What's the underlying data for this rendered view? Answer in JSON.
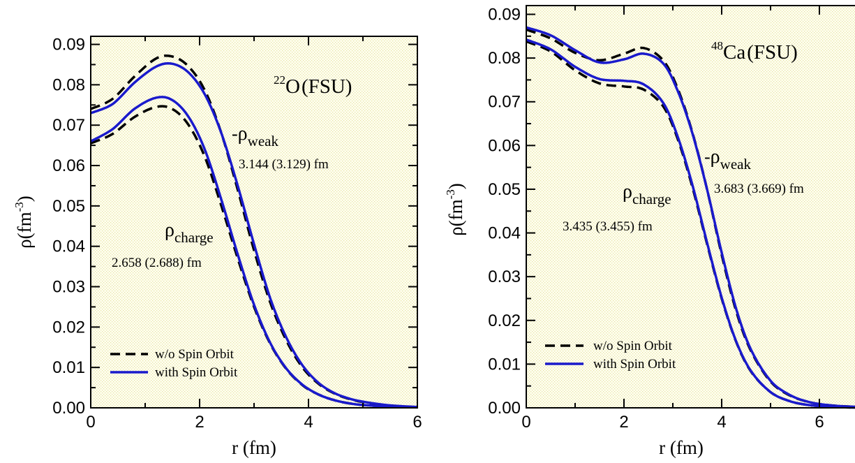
{
  "chart_data": [
    {
      "type": "line",
      "xlabel": "r (fm)",
      "ylabel": "ρ(fm",
      "ylabel_sup": "-3",
      "ylabel_close": ")",
      "xlim": [
        0,
        6
      ],
      "ylim": [
        0,
        0.092
      ],
      "xticks": [
        0,
        2,
        4,
        6
      ],
      "xtick_labels": [
        "0",
        "2",
        "4",
        "6"
      ],
      "yticks": [
        0,
        0.01,
        0.02,
        0.03,
        0.04,
        0.05,
        0.06,
        0.07,
        0.08,
        0.09
      ],
      "ytick_labels": [
        "0.00",
        "0.01",
        "0.02",
        "0.03",
        "0.04",
        "0.05",
        "0.06",
        "0.07",
        "0.08",
        "0.09"
      ],
      "nucleus": {
        "mass_number": "22",
        "symbol": "O",
        "model": "(FSU)"
      },
      "annotations": {
        "weak": {
          "prefix": "-",
          "symbol": "ρ",
          "sub": "weak",
          "radius": "3.144 (3.129) fm"
        },
        "charge": {
          "symbol": "ρ",
          "sub": "charge",
          "radius": "2.658 (2.688) fm"
        }
      },
      "legend": {
        "position": "bottom-left",
        "entries": [
          "w/o Spin Orbit",
          "with Spin Orbit"
        ]
      },
      "series": [
        {
          "group": "weak",
          "style": "dashed",
          "color": "#000000",
          "x": [
            0,
            0.4,
            0.8,
            1.2,
            1.5,
            1.8,
            2.1,
            2.4,
            2.7,
            3.0,
            3.3,
            3.6,
            3.9,
            4.2,
            4.5,
            4.8,
            5.1,
            5.5,
            6.0
          ],
          "y": [
            0.074,
            0.0765,
            0.082,
            0.0865,
            0.087,
            0.0845,
            0.0785,
            0.068,
            0.054,
            0.039,
            0.026,
            0.0165,
            0.0098,
            0.0058,
            0.0034,
            0.002,
            0.0012,
            0.0005,
            0.0002
          ]
        },
        {
          "group": "weak",
          "style": "solid",
          "color": "#1a1acc",
          "x": [
            0,
            0.4,
            0.8,
            1.2,
            1.5,
            1.8,
            2.1,
            2.4,
            2.7,
            3.0,
            3.3,
            3.6,
            3.9,
            4.2,
            4.5,
            4.8,
            5.1,
            5.5,
            6.0
          ],
          "y": [
            0.073,
            0.0752,
            0.0805,
            0.0845,
            0.0852,
            0.083,
            0.0775,
            0.068,
            0.055,
            0.0405,
            0.027,
            0.0172,
            0.0103,
            0.006,
            0.0035,
            0.0021,
            0.0013,
            0.0006,
            0.0002
          ]
        },
        {
          "group": "charge",
          "style": "dashed",
          "color": "#000000",
          "x": [
            0,
            0.4,
            0.8,
            1.2,
            1.5,
            1.8,
            2.1,
            2.4,
            2.7,
            3.0,
            3.3,
            3.6,
            3.9,
            4.2,
            4.5,
            4.8,
            5.1,
            5.5,
            6.0
          ],
          "y": [
            0.0655,
            0.0678,
            0.072,
            0.0745,
            0.074,
            0.07,
            0.062,
            0.05,
            0.037,
            0.025,
            0.0158,
            0.0095,
            0.0055,
            0.0032,
            0.0018,
            0.001,
            0.0006,
            0.0003,
            0.0001
          ]
        },
        {
          "group": "charge",
          "style": "solid",
          "color": "#1a1acc",
          "x": [
            0,
            0.4,
            0.8,
            1.2,
            1.5,
            1.8,
            2.1,
            2.4,
            2.7,
            3.0,
            3.3,
            3.6,
            3.9,
            4.2,
            4.5,
            4.8,
            5.1,
            5.5,
            6.0
          ],
          "y": [
            0.066,
            0.069,
            0.074,
            0.0768,
            0.0762,
            0.072,
            0.0638,
            0.0515,
            0.038,
            0.0255,
            0.016,
            0.0096,
            0.0056,
            0.0032,
            0.0018,
            0.001,
            0.0006,
            0.0003,
            0.0001
          ]
        }
      ]
    },
    {
      "type": "line",
      "xlabel": "r (fm)",
      "ylabel": "ρ(fm",
      "ylabel_sup": "-3",
      "ylabel_close": ")",
      "xlim": [
        0,
        7
      ],
      "ylim": [
        0,
        0.092
      ],
      "xticks": [
        0,
        2,
        4,
        6
      ],
      "xtick_labels": [
        "0",
        "2",
        "4",
        "6"
      ],
      "yticks": [
        0,
        0.01,
        0.02,
        0.03,
        0.04,
        0.05,
        0.06,
        0.07,
        0.08,
        0.09
      ],
      "ytick_labels": [
        "0.00",
        "0.01",
        "0.02",
        "0.03",
        "0.04",
        "0.05",
        "0.06",
        "0.07",
        "0.08",
        "0.09"
      ],
      "nucleus": {
        "mass_number": "48",
        "symbol": "Ca",
        "model": "(FSU)"
      },
      "annotations": {
        "weak": {
          "prefix": "-",
          "symbol": "ρ",
          "sub": "weak",
          "radius": "3.683 (3.669) fm"
        },
        "charge": {
          "symbol": "ρ",
          "sub": "charge",
          "radius": "3.435 (3.455) fm"
        }
      },
      "legend": {
        "position": "bottom-left",
        "entries": [
          "w/o Spin Orbit",
          "with Spin Orbit"
        ]
      },
      "series": [
        {
          "group": "weak",
          "style": "dashed",
          "color": "#000000",
          "x": [
            0,
            0.5,
            1.0,
            1.5,
            2.0,
            2.4,
            2.8,
            3.1,
            3.4,
            3.7,
            4.0,
            4.3,
            4.6,
            5.0,
            5.4,
            5.8,
            6.2,
            6.6,
            7.0
          ],
          "y": [
            0.0865,
            0.0845,
            0.0812,
            0.0795,
            0.081,
            0.0823,
            0.0795,
            0.073,
            0.063,
            0.05,
            0.035,
            0.022,
            0.013,
            0.006,
            0.0028,
            0.0013,
            0.0006,
            0.0003,
            0.0001
          ]
        },
        {
          "group": "weak",
          "style": "solid",
          "color": "#1a1acc",
          "x": [
            0,
            0.5,
            1.0,
            1.5,
            2.0,
            2.4,
            2.8,
            3.1,
            3.4,
            3.7,
            4.0,
            4.3,
            4.6,
            5.0,
            5.4,
            5.8,
            6.2,
            6.6,
            7.0
          ],
          "y": [
            0.087,
            0.0852,
            0.0818,
            0.079,
            0.0797,
            0.081,
            0.0788,
            0.0725,
            0.0628,
            0.05,
            0.0355,
            0.0225,
            0.0133,
            0.0062,
            0.0029,
            0.0013,
            0.0006,
            0.0003,
            0.0001
          ]
        },
        {
          "group": "charge",
          "style": "dashed",
          "color": "#000000",
          "x": [
            0,
            0.5,
            1.0,
            1.5,
            2.0,
            2.4,
            2.8,
            3.1,
            3.4,
            3.7,
            4.0,
            4.3,
            4.6,
            5.0,
            5.4,
            5.8,
            6.2,
            6.6,
            7.0
          ],
          "y": [
            0.0838,
            0.0815,
            0.0772,
            0.0742,
            0.0735,
            0.0728,
            0.069,
            0.0615,
            0.0505,
            0.0375,
            0.025,
            0.015,
            0.0083,
            0.0036,
            0.0015,
            0.0006,
            0.0003,
            0.0001,
            0.0
          ]
        },
        {
          "group": "charge",
          "style": "solid",
          "color": "#1a1acc",
          "x": [
            0,
            0.5,
            1.0,
            1.5,
            2.0,
            2.4,
            2.8,
            3.1,
            3.4,
            3.7,
            4.0,
            4.3,
            4.6,
            5.0,
            5.4,
            5.8,
            6.2,
            6.6,
            7.0
          ],
          "y": [
            0.0842,
            0.082,
            0.078,
            0.0752,
            0.0748,
            0.074,
            0.0698,
            0.062,
            0.051,
            0.0378,
            0.0252,
            0.0151,
            0.0084,
            0.0036,
            0.0015,
            0.0006,
            0.0003,
            0.0001,
            0.0
          ]
        }
      ]
    }
  ]
}
